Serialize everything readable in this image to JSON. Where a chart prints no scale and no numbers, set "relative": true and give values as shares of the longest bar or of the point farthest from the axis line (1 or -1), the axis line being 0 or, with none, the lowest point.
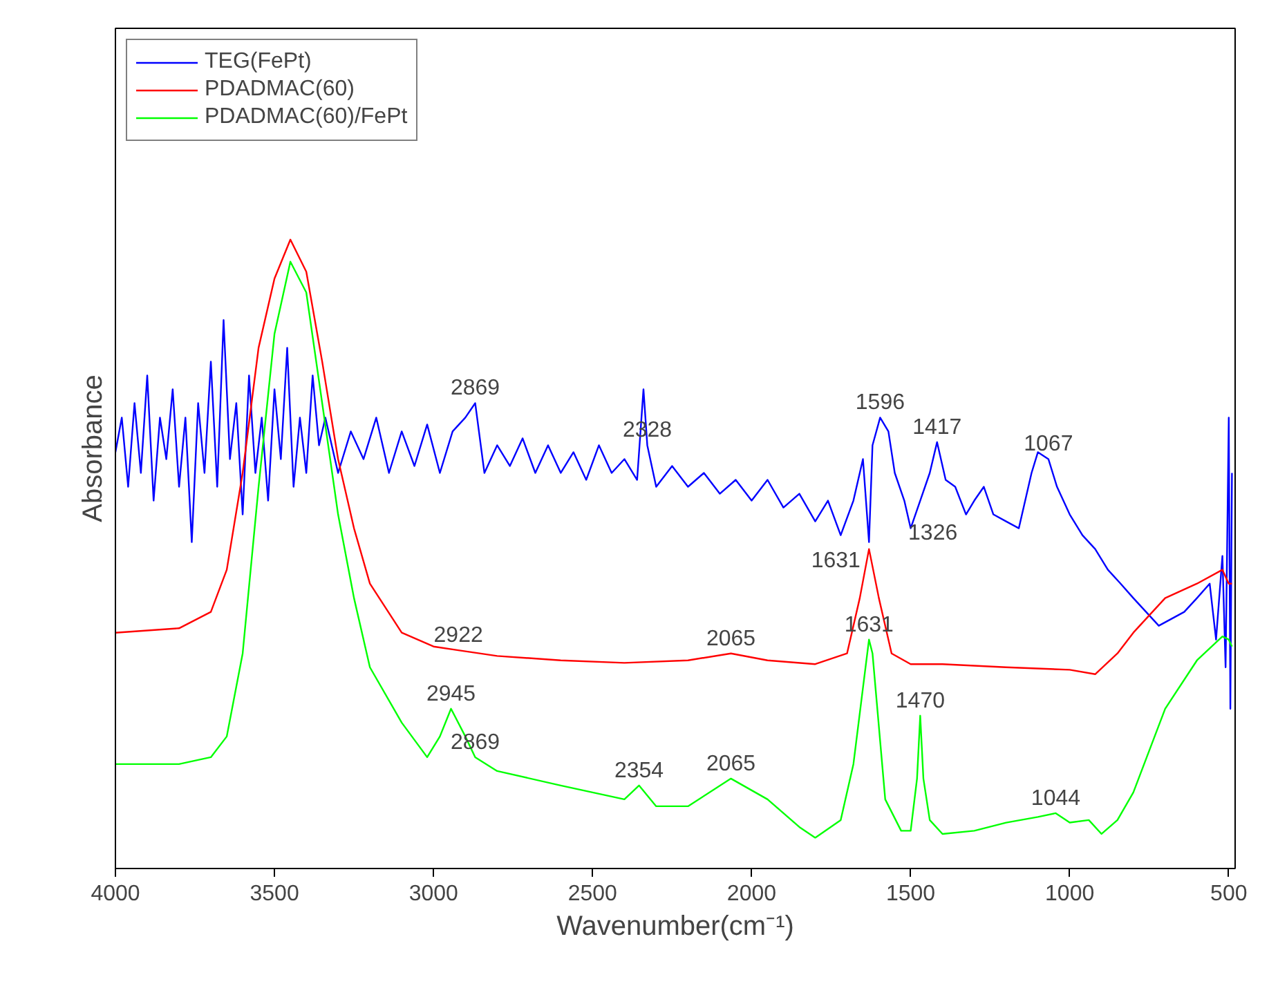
{
  "chart_data": {
    "type": "line",
    "relative": true,
    "xlabel": "Wavenumber(cm⁻¹)",
    "ylabel": "Absorbance",
    "xlim": [
      4000,
      480
    ],
    "xticks": [
      4000,
      3500,
      3000,
      2500,
      2000,
      1500,
      1000,
      500
    ],
    "grid": false,
    "legend": "top left",
    "marker": "none",
    "line_style": "solid",
    "series": [
      {
        "name": "TEG(FePt)",
        "color": "#0000ff",
        "x": [
          4000,
          3980,
          3960,
          3940,
          3920,
          3900,
          3880,
          3860,
          3840,
          3820,
          3800,
          3780,
          3760,
          3740,
          3720,
          3700,
          3680,
          3660,
          3640,
          3620,
          3600,
          3580,
          3560,
          3540,
          3520,
          3500,
          3480,
          3460,
          3440,
          3420,
          3400,
          3380,
          3360,
          3340,
          3300,
          3260,
          3220,
          3180,
          3140,
          3100,
          3060,
          3020,
          2980,
          2940,
          2900,
          2869,
          2840,
          2800,
          2760,
          2720,
          2680,
          2640,
          2600,
          2560,
          2520,
          2480,
          2440,
          2400,
          2360,
          2340,
          2328,
          2300,
          2250,
          2200,
          2150,
          2100,
          2050,
          2000,
          1950,
          1900,
          1850,
          1800,
          1760,
          1720,
          1680,
          1650,
          1631,
          1620,
          1596,
          1570,
          1550,
          1520,
          1500,
          1470,
          1440,
          1417,
          1390,
          1360,
          1326,
          1300,
          1270,
          1240,
          1200,
          1160,
          1120,
          1100,
          1067,
          1040,
          1000,
          960,
          920,
          880,
          840,
          800,
          760,
          720,
          680,
          640,
          600,
          560,
          540,
          520,
          510,
          500,
          495,
          490
        ],
        "values": [
          0.662,
          0.717,
          0.607,
          0.74,
          0.629,
          0.784,
          0.585,
          0.717,
          0.651,
          0.762,
          0.607,
          0.717,
          0.519,
          0.74,
          0.629,
          0.806,
          0.607,
          0.872,
          0.651,
          0.74,
          0.563,
          0.784,
          0.629,
          0.717,
          0.585,
          0.762,
          0.651,
          0.828,
          0.607,
          0.717,
          0.629,
          0.784,
          0.673,
          0.717,
          0.629,
          0.695,
          0.651,
          0.717,
          0.629,
          0.695,
          0.64,
          0.706,
          0.629,
          0.695,
          0.717,
          0.74,
          0.629,
          0.673,
          0.64,
          0.684,
          0.629,
          0.673,
          0.629,
          0.662,
          0.618,
          0.673,
          0.629,
          0.651,
          0.618,
          0.762,
          0.673,
          0.607,
          0.64,
          0.607,
          0.629,
          0.596,
          0.618,
          0.585,
          0.618,
          0.574,
          0.596,
          0.552,
          0.585,
          0.53,
          0.585,
          0.651,
          0.519,
          0.673,
          0.717,
          0.695,
          0.629,
          0.585,
          0.541,
          0.585,
          0.629,
          0.678,
          0.618,
          0.607,
          0.563,
          0.585,
          0.607,
          0.563,
          0.552,
          0.541,
          0.629,
          0.662,
          0.651,
          0.607,
          0.563,
          0.53,
          0.508,
          0.475,
          0.453,
          0.43,
          0.408,
          0.386,
          0.397,
          0.408,
          0.43,
          0.453,
          0.364,
          0.497,
          0.32,
          0.717,
          0.254,
          0.629
        ]
      },
      {
        "name": "PDADMAC(60)",
        "color": "#ff0000",
        "x": [
          4000,
          3800,
          3700,
          3650,
          3600,
          3550,
          3500,
          3450,
          3400,
          3350,
          3300,
          3250,
          3200,
          3100,
          3000,
          2922,
          2800,
          2600,
          2400,
          2200,
          2065,
          1950,
          1800,
          1700,
          1660,
          1631,
          1600,
          1560,
          1500,
          1400,
          1200,
          1000,
          920,
          850,
          800,
          700,
          600,
          520,
          500,
          490
        ],
        "values": [
          0.375,
          0.382,
          0.408,
          0.475,
          0.629,
          0.828,
          0.938,
          1,
          0.949,
          0.806,
          0.651,
          0.541,
          0.453,
          0.375,
          0.353,
          0.347,
          0.338,
          0.331,
          0.327,
          0.331,
          0.342,
          0.331,
          0.325,
          0.342,
          0.43,
          0.508,
          0.43,
          0.342,
          0.325,
          0.325,
          0.32,
          0.316,
          0.309,
          0.342,
          0.375,
          0.43,
          0.453,
          0.475,
          0.453,
          0.453
        ]
      },
      {
        "name": "PDADMAC(60)/FePt",
        "color": "#00ff00",
        "x": [
          4000,
          3800,
          3700,
          3650,
          3600,
          3550,
          3500,
          3450,
          3400,
          3350,
          3300,
          3250,
          3200,
          3100,
          3020,
          2980,
          2945,
          2900,
          2869,
          2800,
          2600,
          2400,
          2354,
          2300,
          2200,
          2065,
          1950,
          1850,
          1800,
          1720,
          1680,
          1631,
          1620,
          1580,
          1530,
          1500,
          1480,
          1470,
          1460,
          1440,
          1400,
          1300,
          1200,
          1100,
          1044,
          1000,
          940,
          900,
          850,
          800,
          700,
          600,
          520,
          500,
          490
        ],
        "values": [
          0.166,
          0.166,
          0.177,
          0.21,
          0.342,
          0.607,
          0.85,
          0.965,
          0.916,
          0.74,
          0.563,
          0.43,
          0.32,
          0.232,
          0.177,
          0.21,
          0.254,
          0.21,
          0.177,
          0.155,
          0.132,
          0.11,
          0.132,
          0.099,
          0.099,
          0.143,
          0.11,
          0.066,
          0.049,
          0.077,
          0.166,
          0.364,
          0.342,
          0.11,
          0.06,
          0.06,
          0.143,
          0.243,
          0.143,
          0.077,
          0.055,
          0.06,
          0.073,
          0.082,
          0.088,
          0.073,
          0.077,
          0.055,
          0.077,
          0.121,
          0.254,
          0.331,
          0.369,
          0.364,
          0.353
        ]
      }
    ],
    "annotations": [
      {
        "text": "2869",
        "x": 2869,
        "y": 0.74
      },
      {
        "text": "2328",
        "x": 2328,
        "y": 0.673
      },
      {
        "text": "1596",
        "x": 1596,
        "y": 0.717
      },
      {
        "text": "1417",
        "x": 1417,
        "y": 0.678
      },
      {
        "text": "1067",
        "x": 1067,
        "y": 0.651
      },
      {
        "text": "1631",
        "x": 1631,
        "y": 0.519
      },
      {
        "text": "1326",
        "x": 1326,
        "y": 0.563
      },
      {
        "text": "2922",
        "x": 2922,
        "y": 0.347
      },
      {
        "text": "2065",
        "x": 2065,
        "y": 0.342
      },
      {
        "text": "1631",
        "x": 1631,
        "y": 0.364
      },
      {
        "text": "2945",
        "x": 2945,
        "y": 0.254
      },
      {
        "text": "2869",
        "x": 2869,
        "y": 0.177
      },
      {
        "text": "2354",
        "x": 2354,
        "y": 0.132
      },
      {
        "text": "2065",
        "x": 2065,
        "y": 0.143
      },
      {
        "text": "1470",
        "x": 1470,
        "y": 0.243
      },
      {
        "text": "1044",
        "x": 1044,
        "y": 0.088
      }
    ]
  }
}
